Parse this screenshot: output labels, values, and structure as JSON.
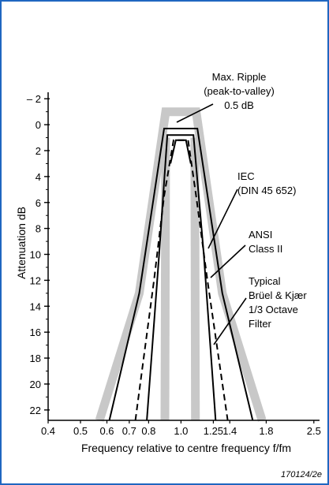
{
  "colors": {
    "frame": "#1f66c0",
    "tolerance_band": "#c8c8c8",
    "line": "#000000"
  },
  "chart_data": {
    "type": "line",
    "xlabel": "Frequency relative to centre frequency f/fm",
    "ylabel": "Attenuation dB",
    "x_scale": "log",
    "y_inverted": true,
    "xlim": [
      0.4,
      2.6
    ],
    "ylim": [
      -2.5,
      22.8
    ],
    "grid": false,
    "x_ticks": [
      {
        "v": 0.4,
        "label": "0.4"
      },
      {
        "v": 0.5,
        "label": "0.5"
      },
      {
        "v": 0.6,
        "label": "0.6"
      },
      {
        "v": 0.7,
        "label": "0.7"
      },
      {
        "v": 0.8,
        "label": "0.8"
      },
      {
        "v": 1.0,
        "label": "1.0"
      },
      {
        "v": 1.25,
        "label": "1.25"
      },
      {
        "v": 1.4,
        "label": "1.4"
      },
      {
        "v": 1.8,
        "label": "1.8"
      },
      {
        "v": 2.5,
        "label": "2.5"
      }
    ],
    "y_ticks": [
      {
        "v": -2,
        "label": "– 2"
      },
      {
        "v": 0,
        "label": "0"
      },
      {
        "v": 2,
        "label": "2"
      },
      {
        "v": 4,
        "label": "4"
      },
      {
        "v": 6,
        "label": "6"
      },
      {
        "v": 8,
        "label": "8"
      },
      {
        "v": 10,
        "label": "10"
      },
      {
        "v": 12,
        "label": "12"
      },
      {
        "v": 14,
        "label": "14"
      },
      {
        "v": 16,
        "label": "16"
      },
      {
        "v": 18,
        "label": "18"
      },
      {
        "v": 20,
        "label": "20"
      },
      {
        "v": 22,
        "label": "22"
      }
    ],
    "series": [
      {
        "key": "tolerance_band",
        "style": "band",
        "points": [
          [
            0.57,
            22.8
          ],
          [
            0.75,
            13
          ],
          [
            0.9,
            -1
          ],
          [
            1.11,
            -1
          ],
          [
            1.33,
            13
          ],
          [
            1.75,
            22.8
          ]
        ]
      },
      {
        "key": "tolerance_band_inner_left",
        "style": "band",
        "points": [
          [
            0.9,
            1
          ],
          [
            0.895,
            22.8
          ]
        ]
      },
      {
        "key": "tolerance_band_inner_right",
        "style": "band",
        "points": [
          [
            1.1,
            1
          ],
          [
            1.105,
            22.8
          ]
        ]
      },
      {
        "key": "iec",
        "style": "solid",
        "points": [
          [
            0.61,
            22.8
          ],
          [
            0.75,
            13
          ],
          [
            0.89,
            0.3
          ],
          [
            1.12,
            0.3
          ],
          [
            1.33,
            13
          ],
          [
            1.64,
            22.8
          ]
        ]
      },
      {
        "key": "ansi",
        "style": "solid",
        "points": [
          [
            0.79,
            22.8
          ],
          [
            0.86,
            10
          ],
          [
            0.91,
            0.8
          ],
          [
            1.09,
            0.8
          ],
          [
            1.17,
            10
          ],
          [
            1.27,
            22.8
          ]
        ]
      },
      {
        "key": "bk",
        "style": "dashed",
        "points": [
          [
            0.73,
            22.8
          ],
          [
            0.83,
            12
          ],
          [
            0.89,
            5.5
          ],
          [
            0.95,
            1.2
          ],
          [
            1.05,
            1.2
          ],
          [
            1.11,
            5.5
          ],
          [
            1.2,
            12
          ],
          [
            1.38,
            22.8
          ]
        ]
      },
      {
        "key": "bk_inner",
        "style": "solid",
        "points": [
          [
            0.93,
            3
          ],
          [
            0.965,
            1.2
          ],
          [
            1.035,
            1.2
          ],
          [
            1.07,
            3
          ]
        ]
      }
    ],
    "annotations": {
      "ripple": [
        "Max. Ripple",
        "(peak-to-valley)",
        "0.5 dB"
      ],
      "iec": [
        "IEC",
        "(DIN 45 652)"
      ],
      "ansi": [
        "ANSI",
        "Class II"
      ],
      "bk": [
        "Typical",
        "Brüel & Kjær",
        "1/3 Octave",
        "Filter"
      ]
    },
    "figure_code": "170124/2e"
  }
}
